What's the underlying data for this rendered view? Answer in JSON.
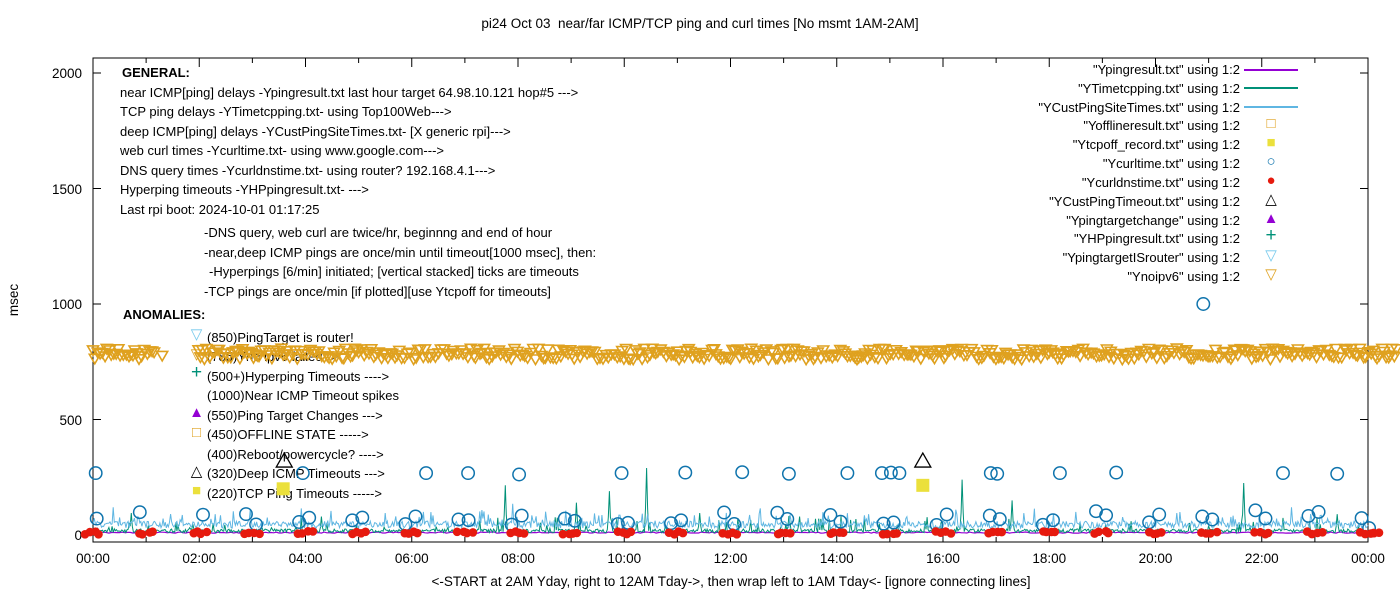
{
  "title": "pi24 Oct 03  near/far ICMP/TCP ping and curl times [No msmt 1AM-2AM]",
  "xlabel": "<-START at 2AM Yday, right to 12AM Tday->, then wrap left to 1AM Tday<- [ignore connecting lines]",
  "ylabel": "msec",
  "axis": {
    "x_tick_labels": [
      "00:00",
      "02:00",
      "04:00",
      "06:00",
      "08:00",
      "10:00",
      "12:00",
      "14:00",
      "16:00",
      "18:00",
      "20:00",
      "22:00",
      "00:00"
    ],
    "y_tick_labels": [
      "0",
      "500",
      "1000",
      "1500",
      "2000"
    ],
    "y_tick_values": [
      0,
      500,
      1000,
      1500,
      2000
    ],
    "x_range_hours": [
      0,
      24
    ],
    "y_range_msec": [
      0,
      2000
    ],
    "grid": "off"
  },
  "general": {
    "heading": "GENERAL:",
    "lines": [
      "near ICMP[ping] delays -Ypingresult.txt last hour target 64.98.10.121 hop#5 --->",
      "TCP ping delays -YTimetcpping.txt- using Top100Web--->",
      "deep ICMP[ping] delays -YCustPingSiteTimes.txt- [X generic rpi]--->",
      "web curl times -Ycurltime.txt- using www.google.com--->",
      "DNS query times -Ycurldnstime.txt- using router? 192.168.4.1--->",
      "Hyperping timeouts -YHPpingresult.txt- --->",
      "Last rpi boot: 2024-10-01 01:17:25"
    ],
    "notes": [
      "-DNS query, web curl are twice/hr, beginnng and end of hour",
      "-near,deep ICMP pings are once/min until timeout[1000 msec], then:",
      "-Hyperpings [6/min] initiated; [vertical stacked] ticks are timeouts",
      "-TCP pings are once/min [if plotted][use Ytcpoff for timeouts]"
    ]
  },
  "anomalies": {
    "heading": "ANOMALIES:",
    "items": [
      {
        "marker": "tri-down-open",
        "color": "#74c9ec",
        "text": "(850)PingTarget is router!"
      },
      {
        "marker": "tri-down-open",
        "color": "#dfa11f",
        "text": "(785)Yno ipv6 failed ->"
      },
      {
        "marker": "plus",
        "color": "#009178",
        "text": "(500+)Hyperping Timeouts ---->"
      },
      {
        "marker": "none",
        "color": "",
        "text": "(1000)Near ICMP Timeout spikes"
      },
      {
        "marker": "tri-up-filled",
        "color": "#9400d3",
        "text": "(550)Ping Target Changes --->"
      },
      {
        "marker": "square-open",
        "color": "#dfa11f",
        "text": "(450)OFFLINE STATE ----->"
      },
      {
        "marker": "none",
        "color": "",
        "text": "(400)Reboot/powercycle? ---->"
      },
      {
        "marker": "tri-up-open",
        "color": "#000000",
        "text": "(320)Deep ICMP Timeouts --->"
      },
      {
        "marker": "square-filled",
        "color": "#ebe03c",
        "text": "(220)TCP Ping Timeouts ----->"
      }
    ]
  },
  "legend": {
    "entries": [
      {
        "label": "\"Ypingresult.txt\" using 1:2",
        "swatch": "line",
        "color": "#9400d3"
      },
      {
        "label": "\"YTimetcpping.txt\" using 1:2",
        "swatch": "line",
        "color": "#009178"
      },
      {
        "label": "\"YCustPingSiteTimes.txt\" using 1:2",
        "swatch": "line",
        "color": "#5fb6e2"
      },
      {
        "label": "\"Yofflineresult.txt\" using 1:2",
        "swatch": "square-open",
        "color": "#dfa11f"
      },
      {
        "label": "\"Ytcpoff_record.txt\" using 1:2",
        "swatch": "square-filled",
        "color": "#ebe03c"
      },
      {
        "label": "\"Ycurltime.txt\" using 1:2",
        "swatch": "circle-open",
        "color": "#0f74ad"
      },
      {
        "label": "\"Ycurldnstime.txt\" using 1:2",
        "swatch": "circle-filled",
        "color": "#e61a0e"
      },
      {
        "label": "\"YCustPingTimeout.txt\" using 1:2",
        "swatch": "tri-up-open",
        "color": "#000000"
      },
      {
        "label": "\"Ypingtargetchange\" using 1:2",
        "swatch": "tri-up-filled",
        "color": "#9400d3"
      },
      {
        "label": "\"YHPpingresult.txt\" using 1:2",
        "swatch": "plus",
        "color": "#009178"
      },
      {
        "label": "\"YpingtargetISrouter\" using 1:2",
        "swatch": "tri-down-open",
        "color": "#74c9ec"
      },
      {
        "label": "\"Ynoipv6\" using 1:2",
        "swatch": "tri-down-open",
        "color": "#dfa11f"
      }
    ]
  },
  "chart_data": {
    "type": "line",
    "x_unit": "hour-of-day (00:00-24:00, 2h ticks)",
    "ylim": [
      0,
      2000
    ],
    "no_measurement_window_hours": [
      1,
      2
    ],
    "series": [
      {
        "file": "Ypingresult.txt",
        "plot": "line",
        "color": "#9400d3",
        "meaning": "near ICMP ping delay",
        "baseline_msec": 8,
        "noise_msec": 5
      },
      {
        "file": "YTimetcpping.txt",
        "plot": "line",
        "color": "#009178",
        "meaning": "TCP ping delay",
        "baseline_msec": 10,
        "noise_msec": 16,
        "spike_prob": 0.06,
        "spike_extra_msec": 60,
        "spikes": [
          [
            0.72,
            95
          ],
          [
            4.3,
            80
          ],
          [
            7.76,
            215
          ],
          [
            9.1,
            140
          ],
          [
            9.72,
            190
          ],
          [
            10.42,
            290
          ],
          [
            11.42,
            95
          ],
          [
            13.3,
            80
          ],
          [
            16.35,
            240
          ],
          [
            17.3,
            150
          ],
          [
            21.65,
            225
          ],
          [
            23.42,
            90
          ]
        ]
      },
      {
        "file": "YCustPingSiteTimes.txt",
        "plot": "line",
        "color": "#5fb6e2",
        "meaning": "deep ICMP ping delay",
        "baseline_msec": 30,
        "noise_msec": 30,
        "spike_prob": 0.08,
        "spike_extra_msec": 55,
        "spikes": [
          [
            0.38,
            120
          ],
          [
            2.3,
            90
          ],
          [
            3.92,
            115
          ],
          [
            5.5,
            95
          ],
          [
            6.4,
            85
          ],
          [
            7.9,
            135
          ],
          [
            8.9,
            105
          ],
          [
            12.55,
            115
          ],
          [
            14.6,
            90
          ],
          [
            18.5,
            100
          ],
          [
            20.4,
            95
          ],
          [
            22.55,
            120
          ],
          [
            23.1,
            85
          ]
        ]
      },
      {
        "file": "Yofflineresult.txt",
        "plot": "points",
        "marker": "square-open",
        "color": "#dfa11f",
        "points": [],
        "note": "shown only in legend/anomaly key (450 level)"
      },
      {
        "file": "Ytcpoff_record.txt",
        "plot": "points",
        "marker": "square-filled",
        "color": "#ebe03c",
        "points": [
          [
            3.58,
            200
          ],
          [
            15.62,
            215
          ]
        ]
      },
      {
        "file": "Ycurltime.txt",
        "plot": "points",
        "marker": "circle-open",
        "color": "#0f74ad",
        "meaning": "web curl times, twice per hour",
        "hourly_pairs": {
          "skip_hours": [
            1
          ],
          "offsets_h": [
            0.07,
            0.88
          ],
          "value_min_msec": 42,
          "value_max_msec": 107
        },
        "slow_runs_270_msec": [
          [
            0.05,
            268
          ],
          [
            3.95,
            268
          ],
          [
            6.27,
            268
          ],
          [
            7.06,
            268
          ],
          [
            8.02,
            262
          ],
          [
            9.95,
            268
          ],
          [
            11.15,
            270
          ],
          [
            12.22,
            272
          ],
          [
            13.1,
            265
          ],
          [
            14.2,
            268
          ],
          [
            14.85,
            268
          ],
          [
            15.02,
            270
          ],
          [
            15.18,
            268
          ],
          [
            16.9,
            268
          ],
          [
            17.02,
            265
          ],
          [
            18.2,
            268
          ],
          [
            19.26,
            270
          ],
          [
            22.4,
            268
          ],
          [
            23.42,
            265
          ]
        ],
        "outliers": [
          [
            20.9,
            1000
          ],
          [
            24.02,
            30
          ]
        ]
      },
      {
        "file": "Ycurldnstime.txt",
        "plot": "points",
        "marker": "circle-filled",
        "color": "#e61a0e",
        "meaning": "DNS query times",
        "hourly_clusters": {
          "hours_start": 0,
          "hours_end": 24,
          "value_min_msec": 3,
          "value_max_msec": 16
        }
      },
      {
        "file": "YCustPingTimeout.txt",
        "plot": "points",
        "marker": "tri-up-open",
        "color": "#000000",
        "points": [
          [
            3.6,
            320
          ],
          [
            15.62,
            320
          ]
        ]
      },
      {
        "file": "Ypingtargetchange",
        "plot": "points",
        "marker": "tri-up-filled",
        "color": "#9400d3",
        "points": [],
        "note": "shown only in anomaly key (550 level)"
      },
      {
        "file": "YHPpingresult.txt",
        "plot": "points",
        "marker": "plus",
        "color": "#009178",
        "points": [],
        "note": "shown only in anomaly key (500+ level)"
      },
      {
        "file": "YpingtargetISrouter",
        "plot": "points",
        "marker": "tri-down-open",
        "color": "#74c9ec",
        "points": [],
        "note": "shown only in anomaly key (850 level)"
      },
      {
        "file": "Ynoipv6",
        "plot": "points",
        "marker": "tri-down-open",
        "color": "#dfa11f",
        "band": {
          "value_msec": 785,
          "jitter_msec": 24,
          "t_start_h": 0,
          "t_end_h": 24.55,
          "gap_no_msmt_h": [
            1.17,
            1.95
          ],
          "lone_marker_in_gap_h": 1.3,
          "step_h_min": 0.03,
          "step_h_rand": 0.03
        }
      }
    ]
  },
  "colors": {
    "background": "#ffffff",
    "frame": "#000000",
    "purple": "#9400d3",
    "teal": "#009178",
    "lightblue": "#5fb6e2",
    "orange": "#dfa11f",
    "yellow": "#ebe03c",
    "blue": "#0f74ad",
    "red": "#e61a0e",
    "cyan_tri": "#74c9ec",
    "black": "#000000"
  }
}
